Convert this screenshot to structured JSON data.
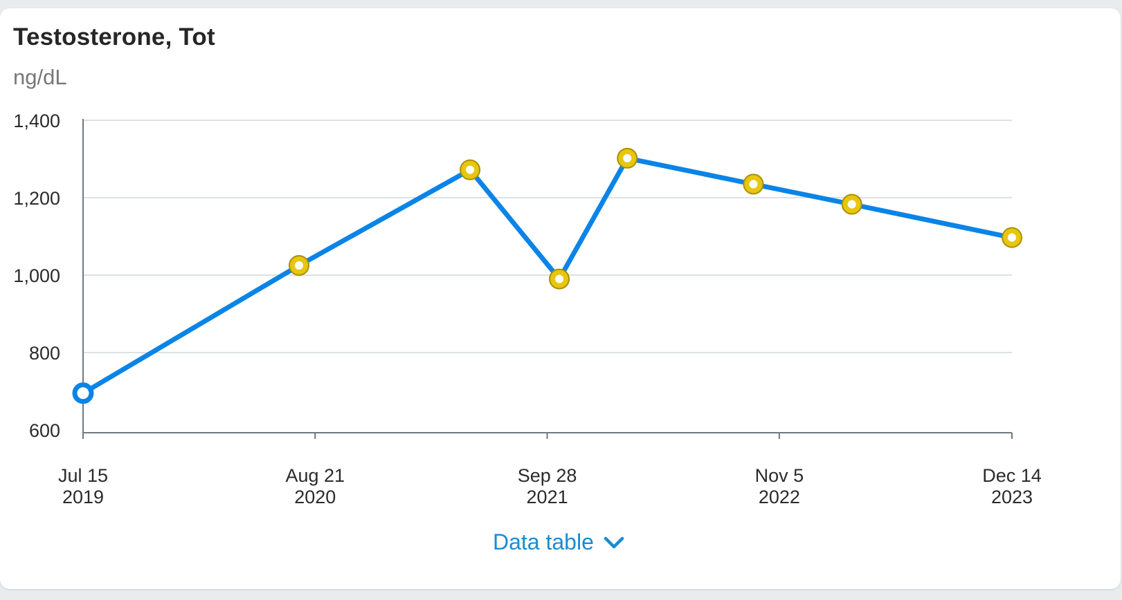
{
  "card": {
    "title": "Testosterone, Tot",
    "unit": "ng/dL",
    "data_table_label": "Data table"
  },
  "colors": {
    "line": "#0a84e6",
    "marker_fill": "#e8c60e",
    "marker_stroke": "#a89000",
    "first_marker": "#0a84e6",
    "grid": "#dde1e4",
    "axis": "#6e7a82",
    "link": "#1a8bd1"
  },
  "icons": {
    "toggle": "chevron-down-icon"
  },
  "chart_data": {
    "type": "line",
    "title": "Testosterone, Tot",
    "ylabel": "ng/dL",
    "xlabel": "",
    "ylim": [
      600,
      1400
    ],
    "yticks": [
      600,
      800,
      1000,
      1200,
      1400
    ],
    "ytick_labels": [
      "600",
      "800",
      "1,000",
      "1,200",
      "1,400"
    ],
    "xlim": [
      "2019-07-15",
      "2023-12-14"
    ],
    "xticks": [
      {
        "date": "2019-07-15",
        "line1": "Jul 15",
        "line2": "2019"
      },
      {
        "date": "2020-08-21",
        "line1": "Aug 21",
        "line2": "2020"
      },
      {
        "date": "2021-09-28",
        "line1": "Sep 28",
        "line2": "2021"
      },
      {
        "date": "2022-11-05",
        "line1": "Nov 5",
        "line2": "2022"
      },
      {
        "date": "2023-12-14",
        "line1": "Dec 14",
        "line2": "2023"
      }
    ],
    "grid": true,
    "series": [
      {
        "points": [
          {
            "date": "2019-07-15",
            "value": 695
          },
          {
            "date": "2020-07-24",
            "value": 1025
          },
          {
            "date": "2021-05-17",
            "value": 1272
          },
          {
            "date": "2021-10-19",
            "value": 990
          },
          {
            "date": "2022-02-14",
            "value": 1302
          },
          {
            "date": "2022-09-21",
            "value": 1235
          },
          {
            "date": "2023-03-11",
            "value": 1183
          },
          {
            "date": "2023-12-14",
            "value": 1097
          }
        ]
      }
    ]
  }
}
